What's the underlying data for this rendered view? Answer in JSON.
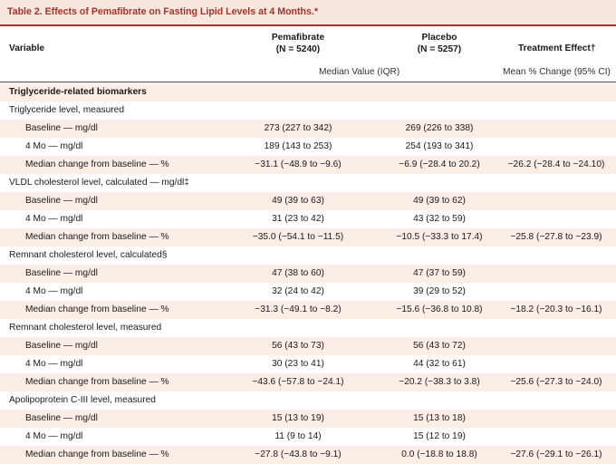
{
  "title": "Table 2. Effects of Pemafibrate on Fasting Lipid Levels at 4 Months.*",
  "header": {
    "variable": "Variable",
    "pema_name": "Pemafibrate",
    "pema_n": "(N = 5240)",
    "placebo_name": "Placebo",
    "placebo_n": "(N = 5257)",
    "effect": "Treatment Effect†",
    "median_label": "Median Value (IQR)",
    "mean_label": "Mean % Change (95% CI)"
  },
  "rows": [
    {
      "label": "Triglyceride-related biomarkers",
      "kind": "section",
      "pema": "",
      "placebo": "",
      "effect": ""
    },
    {
      "label": "Triglyceride level, measured",
      "kind": "group",
      "pema": "",
      "placebo": "",
      "effect": ""
    },
    {
      "label": "Baseline — mg/dl",
      "kind": "item",
      "pema": "273 (227 to 342)",
      "placebo": "269 (226 to 338)",
      "effect": ""
    },
    {
      "label": "4 Mo — mg/dl",
      "kind": "item",
      "pema": "189 (143 to 253)",
      "placebo": "254 (193 to 341)",
      "effect": ""
    },
    {
      "label": "Median change from baseline — %",
      "kind": "item",
      "pema": "−31.1 (−48.9 to −9.6)",
      "placebo": "−6.9 (−28.4 to 20.2)",
      "effect": "−26.2 (−28.4 to −24.10)"
    },
    {
      "label": "VLDL cholesterol level, calculated — mg/dl‡",
      "kind": "group",
      "pema": "",
      "placebo": "",
      "effect": ""
    },
    {
      "label": "Baseline — mg/dl",
      "kind": "item",
      "pema": "49 (39 to 63)",
      "placebo": "49 (39 to 62)",
      "effect": ""
    },
    {
      "label": "4 Mo — mg/dl",
      "kind": "item",
      "pema": "31 (23 to 42)",
      "placebo": "43 (32 to 59)",
      "effect": ""
    },
    {
      "label": "Median change from baseline — %",
      "kind": "item",
      "pema": "−35.0 (−54.1 to −11.5)",
      "placebo": "−10.5 (−33.3 to 17.4)",
      "effect": "−25.8 (−27.8 to −23.9)"
    },
    {
      "label": "Remnant cholesterol level, calculated§",
      "kind": "group",
      "pema": "",
      "placebo": "",
      "effect": ""
    },
    {
      "label": "Baseline — mg/dl",
      "kind": "item",
      "pema": "47 (38 to 60)",
      "placebo": "47 (37 to 59)",
      "effect": ""
    },
    {
      "label": "4 Mo — mg/dl",
      "kind": "item",
      "pema": "32 (24 to 42)",
      "placebo": "39 (29 to 52)",
      "effect": ""
    },
    {
      "label": "Median change from baseline — %",
      "kind": "item",
      "pema": "−31.3 (−49.1 to −8.2)",
      "placebo": "−15.6 (−36.8 to 10.8)",
      "effect": "−18.2 (−20.3 to −16.1)"
    },
    {
      "label": "Remnant cholesterol level, measured",
      "kind": "group",
      "pema": "",
      "placebo": "",
      "effect": ""
    },
    {
      "label": "Baseline — mg/dl",
      "kind": "item",
      "pema": "56 (43 to 73)",
      "placebo": "56 (43 to 72)",
      "effect": ""
    },
    {
      "label": "4 Mo — mg/dl",
      "kind": "item",
      "pema": "30 (23 to 41)",
      "placebo": "44 (32 to 61)",
      "effect": ""
    },
    {
      "label": "Median change from baseline — %",
      "kind": "item",
      "pema": "−43.6 (−57.8 to −24.1)",
      "placebo": "−20.2 (−38.3 to 3.8)",
      "effect": "−25.6 (−27.3 to −24.0)"
    },
    {
      "label": "Apolipoprotein C-III level, measured",
      "kind": "group",
      "pema": "",
      "placebo": "",
      "effect": ""
    },
    {
      "label": "Baseline — mg/dl",
      "kind": "item",
      "pema": "15 (13 to 19)",
      "placebo": "15 (13 to 18)",
      "effect": ""
    },
    {
      "label": "4 Mo — mg/dl",
      "kind": "item",
      "pema": "11 (9 to 14)",
      "placebo": "15 (12 to 19)",
      "effect": ""
    },
    {
      "label": "Median change from baseline — %",
      "kind": "item",
      "pema": "−27.8 (−43.8 to −9.1)",
      "placebo": "0.0 (−18.8 to 18.8)",
      "effect": "−27.6 (−29.1 to −26.1)"
    }
  ]
}
